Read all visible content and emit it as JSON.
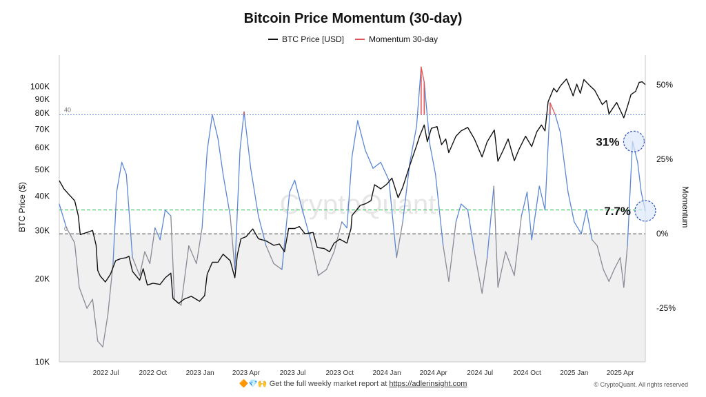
{
  "chart_data": {
    "type": "line",
    "title": "Bitcoin Price Momentum (30-day)",
    "legend": [
      {
        "name": "BTC Price [USD]",
        "color": "#111111"
      },
      {
        "name": "Momentum 30-day",
        "color": "#e05555"
      }
    ],
    "legend_position": "top-center",
    "ylabel_left": "BTC Price ($)",
    "ylabel_right": "Momentum",
    "y_left_scale": "log",
    "y_left_range": [
      10000,
      130000
    ],
    "y_left_ticks": [
      {
        "value": 10000,
        "label": "10K"
      },
      {
        "value": 20000,
        "label": "20K"
      },
      {
        "value": 30000,
        "label": "30K"
      },
      {
        "value": 40000,
        "label": "40K"
      },
      {
        "value": 50000,
        "label": "50K"
      },
      {
        "value": 60000,
        "label": "60K"
      },
      {
        "value": 70000,
        "label": "70K"
      },
      {
        "value": 80000,
        "label": "80K"
      },
      {
        "value": 90000,
        "label": "90K"
      },
      {
        "value": 100000,
        "label": "100K"
      }
    ],
    "y_right_range": [
      -43,
      60
    ],
    "y_right_ticks": [
      {
        "value": 50,
        "label": "50%"
      },
      {
        "value": 25,
        "label": "25%"
      },
      {
        "value": 0,
        "label": "0%"
      },
      {
        "value": -25,
        "label": "-25%"
      }
    ],
    "x_range": [
      "2022-04-01",
      "2025-05-20"
    ],
    "x_ticks": [
      {
        "date": "2022-07-01",
        "label": "2022 Jul"
      },
      {
        "date": "2022-10-01",
        "label": "2022 Oct"
      },
      {
        "date": "2023-01-01",
        "label": "2023 Jan"
      },
      {
        "date": "2023-04-01",
        "label": "2023 Apr"
      },
      {
        "date": "2023-07-01",
        "label": "2023 Jul"
      },
      {
        "date": "2023-10-01",
        "label": "2023 Oct"
      },
      {
        "date": "2024-01-01",
        "label": "2024 Jan"
      },
      {
        "date": "2024-04-01",
        "label": "2024 Apr"
      },
      {
        "date": "2024-07-01",
        "label": "2024 Jul"
      },
      {
        "date": "2024-10-01",
        "label": "2024 Oct"
      },
      {
        "date": "2025-01-01",
        "label": "2025 Jan"
      },
      {
        "date": "2025-04-01",
        "label": "2025 Apr"
      }
    ],
    "reference_lines": [
      {
        "value": 40,
        "label": "40",
        "style": "dotted",
        "color": "#6f8fd8"
      },
      {
        "value": 8,
        "label": "",
        "style": "dashed",
        "color": "#22bb44"
      },
      {
        "value": 0,
        "label": "0",
        "style": "dashed",
        "color": "#444444"
      }
    ],
    "annotations": [
      {
        "text": "31%",
        "date": "2025-04-25",
        "value": 31
      },
      {
        "text": "7.7%",
        "date": "2025-05-20",
        "value": 7.7
      }
    ],
    "watermark": "CryptoQuant",
    "series": [
      {
        "name": "BTC Price [USD]",
        "axis": "left",
        "color": "#111111",
        "points": [
          [
            "2022-04-01",
            45500
          ],
          [
            "2022-04-10",
            42500
          ],
          [
            "2022-04-20",
            40500
          ],
          [
            "2022-05-01",
            38500
          ],
          [
            "2022-05-08",
            34000
          ],
          [
            "2022-05-12",
            29000
          ],
          [
            "2022-05-25",
            29500
          ],
          [
            "2022-06-05",
            30000
          ],
          [
            "2022-06-12",
            26500
          ],
          [
            "2022-06-15",
            21500
          ],
          [
            "2022-06-20",
            20500
          ],
          [
            "2022-06-30",
            19500
          ],
          [
            "2022-07-10",
            20800
          ],
          [
            "2022-07-20",
            23300
          ],
          [
            "2022-07-30",
            23700
          ],
          [
            "2022-08-10",
            23900
          ],
          [
            "2022-08-15",
            24200
          ],
          [
            "2022-08-22",
            21300
          ],
          [
            "2022-09-05",
            19800
          ],
          [
            "2022-09-12",
            21800
          ],
          [
            "2022-09-20",
            19000
          ],
          [
            "2022-10-01",
            19300
          ],
          [
            "2022-10-15",
            19100
          ],
          [
            "2022-10-25",
            20200
          ],
          [
            "2022-11-05",
            21000
          ],
          [
            "2022-11-09",
            17000
          ],
          [
            "2022-11-20",
            16300
          ],
          [
            "2022-12-01",
            16900
          ],
          [
            "2022-12-15",
            17300
          ],
          [
            "2022-12-31",
            16600
          ],
          [
            "2023-01-10",
            17400
          ],
          [
            "2023-01-15",
            20800
          ],
          [
            "2023-01-25",
            23000
          ],
          [
            "2023-02-05",
            23000
          ],
          [
            "2023-02-15",
            24600
          ],
          [
            "2023-03-01",
            23300
          ],
          [
            "2023-03-10",
            20200
          ],
          [
            "2023-03-15",
            24500
          ],
          [
            "2023-03-22",
            28000
          ],
          [
            "2023-04-01",
            28500
          ],
          [
            "2023-04-14",
            30400
          ],
          [
            "2023-04-25",
            28000
          ],
          [
            "2023-05-10",
            27500
          ],
          [
            "2023-05-25",
            26500
          ],
          [
            "2023-06-05",
            26800
          ],
          [
            "2023-06-15",
            25100
          ],
          [
            "2023-06-23",
            30500
          ],
          [
            "2023-07-05",
            30500
          ],
          [
            "2023-07-14",
            31000
          ],
          [
            "2023-07-25",
            29200
          ],
          [
            "2023-08-10",
            29500
          ],
          [
            "2023-08-18",
            26000
          ],
          [
            "2023-09-01",
            25800
          ],
          [
            "2023-09-11",
            25100
          ],
          [
            "2023-09-20",
            27000
          ],
          [
            "2023-10-01",
            27900
          ],
          [
            "2023-10-15",
            27000
          ],
          [
            "2023-10-23",
            30500
          ],
          [
            "2023-10-25",
            34000
          ],
          [
            "2023-11-10",
            37000
          ],
          [
            "2023-11-20",
            37500
          ],
          [
            "2023-12-01",
            38500
          ],
          [
            "2023-12-08",
            44000
          ],
          [
            "2023-12-20",
            42500
          ],
          [
            "2024-01-01",
            44200
          ],
          [
            "2024-01-11",
            46500
          ],
          [
            "2024-01-23",
            39500
          ],
          [
            "2024-02-01",
            43000
          ],
          [
            "2024-02-15",
            51800
          ],
          [
            "2024-02-28",
            61000
          ],
          [
            "2024-03-05",
            66000
          ],
          [
            "2024-03-14",
            72500
          ],
          [
            "2024-03-20",
            63000
          ],
          [
            "2024-03-28",
            70500
          ],
          [
            "2024-04-08",
            71500
          ],
          [
            "2024-04-17",
            61500
          ],
          [
            "2024-04-25",
            64500
          ],
          [
            "2024-05-01",
            57500
          ],
          [
            "2024-05-15",
            66000
          ],
          [
            "2024-05-25",
            69000
          ],
          [
            "2024-06-07",
            71000
          ],
          [
            "2024-06-20",
            64500
          ],
          [
            "2024-07-05",
            55500
          ],
          [
            "2024-07-15",
            63000
          ],
          [
            "2024-07-29",
            69500
          ],
          [
            "2024-08-05",
            53500
          ],
          [
            "2024-08-15",
            58500
          ],
          [
            "2024-08-25",
            64500
          ],
          [
            "2024-09-06",
            53800
          ],
          [
            "2024-09-15",
            59000
          ],
          [
            "2024-09-28",
            66000
          ],
          [
            "2024-10-10",
            60500
          ],
          [
            "2024-10-20",
            68500
          ],
          [
            "2024-10-29",
            72500
          ],
          [
            "2024-11-05",
            69000
          ],
          [
            "2024-11-11",
            88000
          ],
          [
            "2024-11-22",
            98500
          ],
          [
            "2024-11-28",
            95500
          ],
          [
            "2024-12-05",
            100500
          ],
          [
            "2024-12-17",
            106500
          ],
          [
            "2024-12-30",
            92500
          ],
          [
            "2025-01-06",
            102000
          ],
          [
            "2025-01-13",
            94500
          ],
          [
            "2025-01-20",
            106000
          ],
          [
            "2025-02-01",
            100500
          ],
          [
            "2025-02-10",
            97000
          ],
          [
            "2025-02-25",
            86000
          ],
          [
            "2025-03-05",
            89000
          ],
          [
            "2025-03-10",
            79500
          ],
          [
            "2025-03-25",
            87500
          ],
          [
            "2025-04-08",
            77000
          ],
          [
            "2025-04-15",
            84500
          ],
          [
            "2025-04-22",
            93500
          ],
          [
            "2025-05-01",
            96000
          ],
          [
            "2025-05-08",
            103500
          ],
          [
            "2025-05-14",
            104000
          ],
          [
            "2025-05-20",
            101500
          ]
        ]
      },
      {
        "name": "Momentum 30-day",
        "axis": "right",
        "color": "#e05555",
        "above_zero_color": "#5b86d6",
        "below_zero_color": "#8a8a96",
        "highlight_above": 40,
        "points": [
          [
            "2022-04-01",
            10
          ],
          [
            "2022-04-15",
            2
          ],
          [
            "2022-05-01",
            -3
          ],
          [
            "2022-05-10",
            -18
          ],
          [
            "2022-05-25",
            -25
          ],
          [
            "2022-06-05",
            -22
          ],
          [
            "2022-06-15",
            -36
          ],
          [
            "2022-06-25",
            -38
          ],
          [
            "2022-07-05",
            -27
          ],
          [
            "2022-07-15",
            -10
          ],
          [
            "2022-07-22",
            14
          ],
          [
            "2022-08-01",
            24
          ],
          [
            "2022-08-10",
            20
          ],
          [
            "2022-08-22",
            -8
          ],
          [
            "2022-09-05",
            -14
          ],
          [
            "2022-09-15",
            -6
          ],
          [
            "2022-09-25",
            -10
          ],
          [
            "2022-10-05",
            2
          ],
          [
            "2022-10-15",
            -2
          ],
          [
            "2022-10-25",
            8
          ],
          [
            "2022-11-05",
            6
          ],
          [
            "2022-11-12",
            -22
          ],
          [
            "2022-11-25",
            -24
          ],
          [
            "2022-12-10",
            -4
          ],
          [
            "2022-12-25",
            -10
          ],
          [
            "2023-01-05",
            2
          ],
          [
            "2023-01-15",
            28
          ],
          [
            "2023-01-25",
            40
          ],
          [
            "2023-02-05",
            32
          ],
          [
            "2023-02-15",
            20
          ],
          [
            "2023-03-01",
            6
          ],
          [
            "2023-03-10",
            -12
          ],
          [
            "2023-03-20",
            28
          ],
          [
            "2023-03-28",
            41
          ],
          [
            "2023-04-10",
            22
          ],
          [
            "2023-04-25",
            6
          ],
          [
            "2023-05-10",
            -4
          ],
          [
            "2023-05-25",
            -10
          ],
          [
            "2023-06-10",
            -12
          ],
          [
            "2023-06-25",
            14
          ],
          [
            "2023-07-05",
            18
          ],
          [
            "2023-07-20",
            8
          ],
          [
            "2023-08-05",
            -2
          ],
          [
            "2023-08-20",
            -14
          ],
          [
            "2023-09-05",
            -12
          ],
          [
            "2023-09-20",
            -6
          ],
          [
            "2023-10-05",
            4
          ],
          [
            "2023-10-15",
            2
          ],
          [
            "2023-10-25",
            26
          ],
          [
            "2023-11-05",
            38
          ],
          [
            "2023-11-20",
            28
          ],
          [
            "2023-12-05",
            22
          ],
          [
            "2023-12-20",
            24
          ],
          [
            "2024-01-05",
            18
          ],
          [
            "2024-01-20",
            -8
          ],
          [
            "2024-02-01",
            4
          ],
          [
            "2024-02-15",
            24
          ],
          [
            "2024-02-28",
            36
          ],
          [
            "2024-03-08",
            56
          ],
          [
            "2024-03-14",
            51
          ],
          [
            "2024-03-25",
            30
          ],
          [
            "2024-04-05",
            20
          ],
          [
            "2024-04-20",
            -4
          ],
          [
            "2024-05-01",
            -16
          ],
          [
            "2024-05-15",
            4
          ],
          [
            "2024-05-25",
            10
          ],
          [
            "2024-06-07",
            8
          ],
          [
            "2024-06-20",
            -6
          ],
          [
            "2024-07-05",
            -20
          ],
          [
            "2024-07-15",
            -8
          ],
          [
            "2024-07-28",
            16
          ],
          [
            "2024-08-05",
            -18
          ],
          [
            "2024-08-20",
            -6
          ],
          [
            "2024-09-06",
            -14
          ],
          [
            "2024-09-20",
            6
          ],
          [
            "2024-10-01",
            14
          ],
          [
            "2024-10-10",
            -2
          ],
          [
            "2024-10-25",
            16
          ],
          [
            "2024-11-05",
            8
          ],
          [
            "2024-11-15",
            44
          ],
          [
            "2024-11-25",
            40
          ],
          [
            "2024-12-05",
            34
          ],
          [
            "2024-12-20",
            14
          ],
          [
            "2025-01-01",
            4
          ],
          [
            "2025-01-15",
            0
          ],
          [
            "2025-01-25",
            8
          ],
          [
            "2025-02-05",
            -2
          ],
          [
            "2025-02-15",
            -4
          ],
          [
            "2025-02-27",
            -12
          ],
          [
            "2025-03-10",
            -16
          ],
          [
            "2025-03-20",
            -12
          ],
          [
            "2025-04-01",
            -8
          ],
          [
            "2025-04-08",
            -18
          ],
          [
            "2025-04-15",
            -4
          ],
          [
            "2025-04-25",
            31
          ],
          [
            "2025-05-05",
            24
          ],
          [
            "2025-05-12",
            14
          ],
          [
            "2025-05-20",
            7.7
          ]
        ]
      }
    ]
  },
  "footer": {
    "promo_emoji": "🔶💎🙌",
    "promo_text": "Get the full weekly market report at",
    "promo_link": "https://adlerinsight.com",
    "copyright": "© CryptoQuant. All rights reserved"
  }
}
